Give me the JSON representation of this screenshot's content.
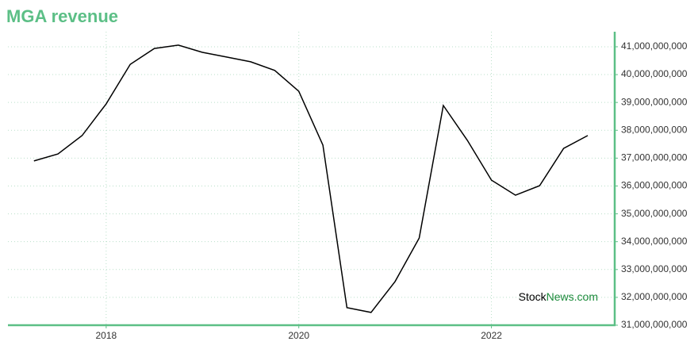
{
  "chart_data": {
    "type": "line",
    "title": "MGA revenue",
    "x": [
      2017.25,
      2017.5,
      2017.75,
      2018.0,
      2018.25,
      2018.5,
      2018.75,
      2019.0,
      2019.25,
      2019.5,
      2019.75,
      2020.0,
      2020.25,
      2020.5,
      2020.75,
      2021.0,
      2021.25,
      2021.5,
      2021.75,
      2022.0,
      2022.25,
      2022.5,
      2022.75,
      2023.0
    ],
    "values": [
      36900000000,
      37150000000,
      37810000000,
      38950000000,
      40370000000,
      40940000000,
      41060000000,
      40800000000,
      40630000000,
      40460000000,
      40150000000,
      39400000000,
      37470000000,
      31630000000,
      31460000000,
      32570000000,
      34130000000,
      38890000000,
      37640000000,
      36210000000,
      35670000000,
      36010000000,
      37350000000,
      37810000000
    ],
    "color": "#000000",
    "xlim": [
      2016.98,
      2023.28
    ],
    "xticks": [
      2018,
      2020,
      2022
    ],
    "ylim": [
      31000000000,
      41540000000
    ],
    "yticks": [
      {
        "value": 31000000000,
        "label": "31,000,000,000"
      },
      {
        "value": 32000000000,
        "label": "32,000,000,000"
      },
      {
        "value": 33000000000,
        "label": "33,000,000,000"
      },
      {
        "value": 34000000000,
        "label": "34,000,000,000"
      },
      {
        "value": 35000000000,
        "label": "35,000,000,000"
      },
      {
        "value": 36000000000,
        "label": "36,000,000,000"
      },
      {
        "value": 37000000000,
        "label": "37,000,000,000"
      },
      {
        "value": 38000000000,
        "label": "38,000,000,000"
      },
      {
        "value": 39000000000,
        "label": "39,000,000,000"
      },
      {
        "value": 40000000000,
        "label": "40,000,000,000"
      },
      {
        "value": 41000000000,
        "label": "41,000,000,000"
      }
    ],
    "grid": true,
    "axis_color": "#5cbf86",
    "watermark": {
      "prefix": "Stock",
      "suffix": "News.com",
      "suffix_color": "#1a8a3a"
    }
  }
}
